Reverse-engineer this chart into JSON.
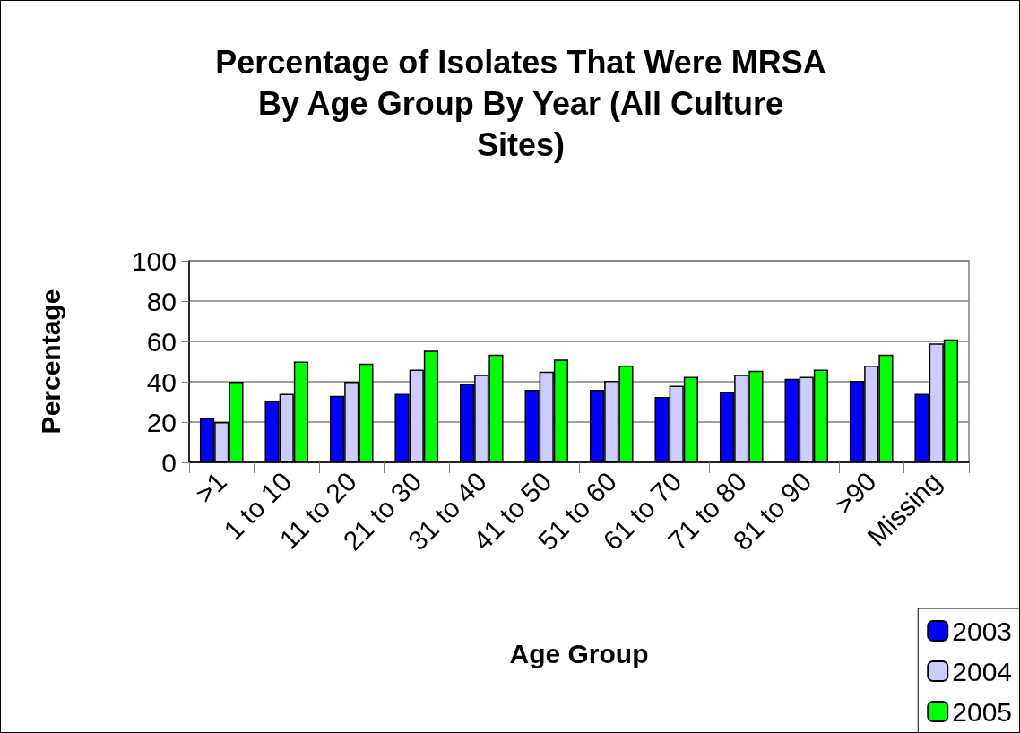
{
  "chart_data": {
    "type": "bar",
    "title": "Percentage of Isolates That Were MRSA\nBy Age Group By Year (All Culture\nSites)",
    "xlabel": "Age Group",
    "ylabel": "Percentage",
    "categories": [
      ">1",
      "1 to 10",
      "11 to 20",
      "21 to 30",
      "31 to 40",
      "41 to 50",
      "51 to 60",
      "61 to 70",
      "71 to 80",
      "81 to 90",
      ">90",
      "Missing"
    ],
    "series": [
      {
        "name": "2003",
        "color": "#0000ff",
        "values": [
          22,
          30.5,
          33,
          34,
          39,
          36,
          36,
          32.5,
          35,
          41.5,
          40.5,
          34
        ]
      },
      {
        "name": "2004",
        "color": "#ccccff",
        "values": [
          20,
          34,
          40,
          46,
          43.5,
          45,
          40.5,
          38,
          43.5,
          42.5,
          48,
          59
        ]
      },
      {
        "name": "2005",
        "color": "#00ff00",
        "values": [
          40,
          50,
          49,
          55.5,
          53.5,
          51,
          48,
          42.5,
          45.5,
          46,
          53.5,
          61
        ]
      }
    ],
    "ylim": [
      0,
      100
    ],
    "yticks": [
      0,
      20,
      40,
      60,
      80,
      100
    ],
    "grid": "y",
    "legend": "bottom right"
  }
}
